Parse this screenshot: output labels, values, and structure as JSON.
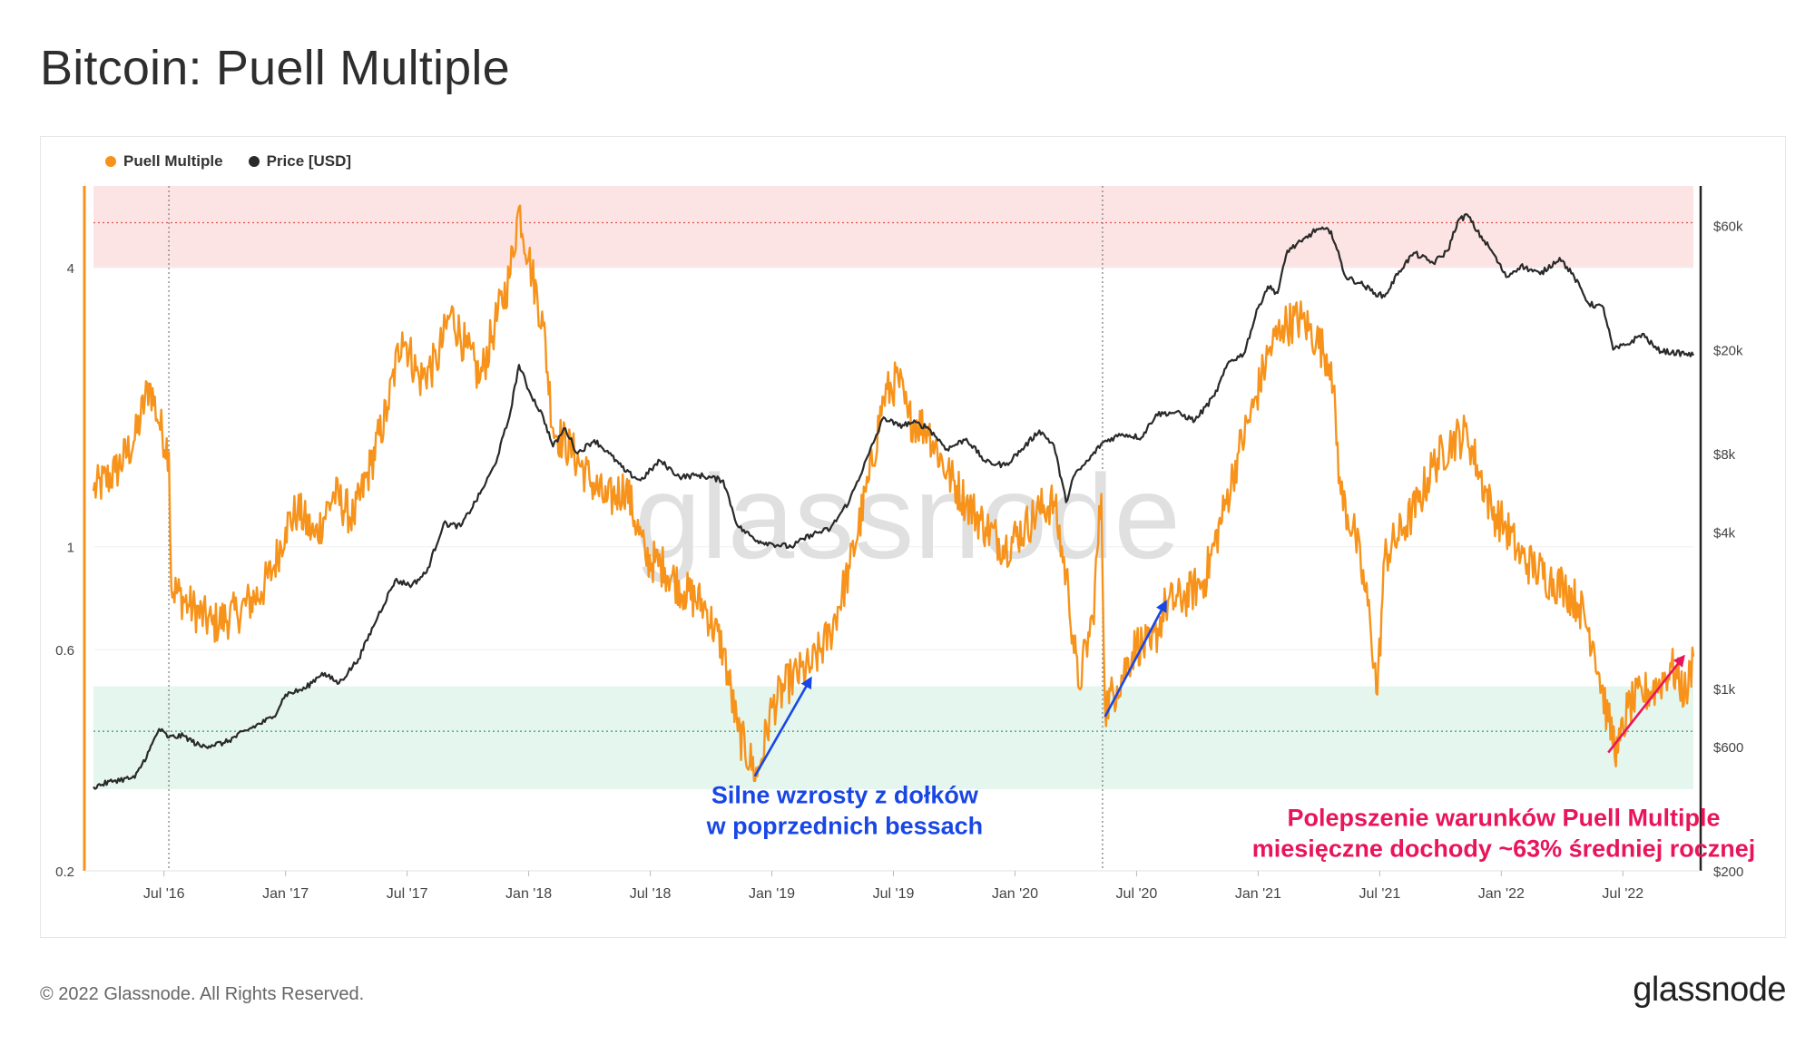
{
  "title": "Bitcoin: Puell Multiple",
  "footer": {
    "copyright": "© 2022 Glassnode. All Rights Reserved.",
    "brand": "glassnode",
    "watermark": "glassnode"
  },
  "colors": {
    "puell": "#f7931a",
    "price": "#2a2a2a",
    "top_band": "#fde4e4",
    "bottom_band": "#e4f6ee",
    "annotation_blue": "#1947e5",
    "annotation_red": "#e8155a"
  },
  "chart_data": {
    "type": "line",
    "legend": [
      {
        "name": "Puell Multiple",
        "color": "#f7931a"
      },
      {
        "name": "Price [USD]",
        "color": "#2a2a2a"
      }
    ],
    "x_range": [
      2016.21,
      2022.79
    ],
    "x_ticks": [
      {
        "label": "Jul '16",
        "t": 2016.5
      },
      {
        "label": "Jan '17",
        "t": 2017.0
      },
      {
        "label": "Jul '17",
        "t": 2017.5
      },
      {
        "label": "Jan '18",
        "t": 2018.0
      },
      {
        "label": "Jul '18",
        "t": 2018.5
      },
      {
        "label": "Jan '19",
        "t": 2019.0
      },
      {
        "label": "Jul '19",
        "t": 2019.5
      },
      {
        "label": "Jan '20",
        "t": 2020.0
      },
      {
        "label": "Jul '20",
        "t": 2020.5
      },
      {
        "label": "Jan '21",
        "t": 2021.0
      },
      {
        "label": "Jul '21",
        "t": 2021.5
      },
      {
        "label": "Jan '22",
        "t": 2022.0
      },
      {
        "label": "Jul '22",
        "t": 2022.5
      }
    ],
    "y_left": {
      "scale": "log",
      "range": [
        0.2,
        6.0
      ],
      "ticks": [
        {
          "label": "0.2",
          "v": 0.2
        },
        {
          "label": "0.6",
          "v": 0.6
        },
        {
          "label": "1",
          "v": 1
        },
        {
          "label": "4",
          "v": 4
        }
      ]
    },
    "y_right": {
      "scale": "log",
      "range": [
        200,
        85000
      ],
      "ticks": [
        {
          "label": "$200",
          "v": 200
        },
        {
          "label": "$600",
          "v": 600
        },
        {
          "label": "$1k",
          "v": 1000
        },
        {
          "label": "$4k",
          "v": 4000
        },
        {
          "label": "$8k",
          "v": 8000
        },
        {
          "label": "$20k",
          "v": 20000
        },
        {
          "label": "$60k",
          "v": 60000
        }
      ]
    },
    "bands": [
      {
        "name": "overheated",
        "from": 4.0,
        "to": 6.0,
        "ref_line": 5.0
      },
      {
        "name": "undervalued",
        "from": 0.3,
        "to": 0.5,
        "ref_line": 0.4
      }
    ],
    "halvings": [
      2016.52,
      2020.36
    ],
    "series": [
      {
        "name": "Puell Multiple",
        "axis": "left",
        "points": [
          [
            2016.21,
            1.32
          ],
          [
            2016.3,
            1.45
          ],
          [
            2016.38,
            1.7
          ],
          [
            2016.44,
            2.25
          ],
          [
            2016.48,
            1.85
          ],
          [
            2016.52,
            1.6
          ],
          [
            2016.53,
            0.82
          ],
          [
            2016.6,
            0.75
          ],
          [
            2016.7,
            0.68
          ],
          [
            2016.8,
            0.72
          ],
          [
            2016.9,
            0.8
          ],
          [
            2016.95,
            0.9
          ],
          [
            2017.0,
            1.1
          ],
          [
            2017.05,
            1.2
          ],
          [
            2017.12,
            1.05
          ],
          [
            2017.2,
            1.3
          ],
          [
            2017.28,
            1.15
          ],
          [
            2017.35,
            1.5
          ],
          [
            2017.42,
            2.0
          ],
          [
            2017.48,
            2.9
          ],
          [
            2017.55,
            2.3
          ],
          [
            2017.62,
            2.5
          ],
          [
            2017.68,
            3.2
          ],
          [
            2017.74,
            2.7
          ],
          [
            2017.8,
            2.3
          ],
          [
            2017.86,
            3.0
          ],
          [
            2017.92,
            3.8
          ],
          [
            2017.96,
            5.4
          ],
          [
            2018.0,
            4.2
          ],
          [
            2018.06,
            3.0
          ],
          [
            2018.1,
            1.8
          ],
          [
            2018.18,
            1.6
          ],
          [
            2018.25,
            1.4
          ],
          [
            2018.32,
            1.25
          ],
          [
            2018.4,
            1.35
          ],
          [
            2018.48,
            0.95
          ],
          [
            2018.56,
            0.9
          ],
          [
            2018.64,
            0.8
          ],
          [
            2018.72,
            0.75
          ],
          [
            2018.8,
            0.6
          ],
          [
            2018.86,
            0.4
          ],
          [
            2018.94,
            0.32
          ],
          [
            2019.0,
            0.45
          ],
          [
            2019.08,
            0.52
          ],
          [
            2019.16,
            0.55
          ],
          [
            2019.24,
            0.65
          ],
          [
            2019.32,
            0.9
          ],
          [
            2019.4,
            1.4
          ],
          [
            2019.46,
            2.1
          ],
          [
            2019.52,
            2.3
          ],
          [
            2019.56,
            1.9
          ],
          [
            2019.64,
            1.8
          ],
          [
            2019.72,
            1.45
          ],
          [
            2019.8,
            1.25
          ],
          [
            2019.88,
            1.1
          ],
          [
            2019.96,
            1.0
          ],
          [
            2020.04,
            1.1
          ],
          [
            2020.1,
            1.2
          ],
          [
            2020.16,
            1.25
          ],
          [
            2020.22,
            0.8
          ],
          [
            2020.26,
            0.5
          ],
          [
            2020.32,
            0.7
          ],
          [
            2020.355,
            1.3
          ],
          [
            2020.37,
            0.45
          ],
          [
            2020.42,
            0.5
          ],
          [
            2020.5,
            0.62
          ],
          [
            2020.56,
            0.6
          ],
          [
            2020.62,
            0.75
          ],
          [
            2020.7,
            0.78
          ],
          [
            2020.78,
            0.85
          ],
          [
            2020.86,
            1.2
          ],
          [
            2020.92,
            1.6
          ],
          [
            2020.98,
            2.0
          ],
          [
            2021.04,
            2.6
          ],
          [
            2021.1,
            3.0
          ],
          [
            2021.18,
            3.1
          ],
          [
            2021.24,
            2.8
          ],
          [
            2021.3,
            2.5
          ],
          [
            2021.34,
            1.3
          ],
          [
            2021.4,
            1.05
          ],
          [
            2021.46,
            0.7
          ],
          [
            2021.49,
            0.48
          ],
          [
            2021.52,
            0.95
          ],
          [
            2021.6,
            1.1
          ],
          [
            2021.66,
            1.25
          ],
          [
            2021.72,
            1.5
          ],
          [
            2021.8,
            1.7
          ],
          [
            2021.86,
            1.75
          ],
          [
            2021.9,
            1.5
          ],
          [
            2021.96,
            1.2
          ],
          [
            2022.02,
            1.1
          ],
          [
            2022.08,
            0.95
          ],
          [
            2022.14,
            0.9
          ],
          [
            2022.2,
            0.85
          ],
          [
            2022.26,
            0.82
          ],
          [
            2022.32,
            0.75
          ],
          [
            2022.38,
            0.62
          ],
          [
            2022.44,
            0.42
          ],
          [
            2022.48,
            0.36
          ],
          [
            2022.52,
            0.45
          ],
          [
            2022.58,
            0.48
          ],
          [
            2022.64,
            0.5
          ],
          [
            2022.7,
            0.55
          ],
          [
            2022.76,
            0.48
          ],
          [
            2022.79,
            0.58
          ]
        ]
      },
      {
        "name": "Price [USD]",
        "axis": "right",
        "points": [
          [
            2016.21,
            420
          ],
          [
            2016.3,
            445
          ],
          [
            2016.38,
            455
          ],
          [
            2016.44,
            580
          ],
          [
            2016.48,
            700
          ],
          [
            2016.52,
            650
          ],
          [
            2016.58,
            660
          ],
          [
            2016.65,
            600
          ],
          [
            2016.75,
            620
          ],
          [
            2016.85,
            700
          ],
          [
            2016.95,
            780
          ],
          [
            2017.0,
            950
          ],
          [
            2017.08,
            1000
          ],
          [
            2017.15,
            1150
          ],
          [
            2017.22,
            1050
          ],
          [
            2017.3,
            1300
          ],
          [
            2017.38,
            1900
          ],
          [
            2017.45,
            2600
          ],
          [
            2017.52,
            2500
          ],
          [
            2017.58,
            2800
          ],
          [
            2017.65,
            4300
          ],
          [
            2017.72,
            4200
          ],
          [
            2017.8,
            5600
          ],
          [
            2017.86,
            7200
          ],
          [
            2017.92,
            11000
          ],
          [
            2017.96,
            17500
          ],
          [
            2018.0,
            14000
          ],
          [
            2018.06,
            11000
          ],
          [
            2018.1,
            8500
          ],
          [
            2018.15,
            10000
          ],
          [
            2018.2,
            8000
          ],
          [
            2018.27,
            9000
          ],
          [
            2018.33,
            8000
          ],
          [
            2018.4,
            6800
          ],
          [
            2018.46,
            6300
          ],
          [
            2018.54,
            7500
          ],
          [
            2018.62,
            6500
          ],
          [
            2018.7,
            6600
          ],
          [
            2018.8,
            6300
          ],
          [
            2018.86,
            4200
          ],
          [
            2018.94,
            3700
          ],
          [
            2019.0,
            3600
          ],
          [
            2019.08,
            3500
          ],
          [
            2019.16,
            3900
          ],
          [
            2019.24,
            4100
          ],
          [
            2019.32,
            5300
          ],
          [
            2019.4,
            8000
          ],
          [
            2019.46,
            11000
          ],
          [
            2019.52,
            10200
          ],
          [
            2019.58,
            10500
          ],
          [
            2019.64,
            10100
          ],
          [
            2019.72,
            8300
          ],
          [
            2019.8,
            9100
          ],
          [
            2019.88,
            7400
          ],
          [
            2019.96,
            7200
          ],
          [
            2020.04,
            8500
          ],
          [
            2020.1,
            9800
          ],
          [
            2020.16,
            8600
          ],
          [
            2020.21,
            5200
          ],
          [
            2020.24,
            6500
          ],
          [
            2020.3,
            7500
          ],
          [
            2020.36,
            8800
          ],
          [
            2020.44,
            9500
          ],
          [
            2020.52,
            9200
          ],
          [
            2020.58,
            11300
          ],
          [
            2020.66,
            11500
          ],
          [
            2020.74,
            10700
          ],
          [
            2020.82,
            13300
          ],
          [
            2020.88,
            18000
          ],
          [
            2020.94,
            19200
          ],
          [
            2021.0,
            29000
          ],
          [
            2021.04,
            35000
          ],
          [
            2021.08,
            33000
          ],
          [
            2021.12,
            48000
          ],
          [
            2021.18,
            52000
          ],
          [
            2021.24,
            58000
          ],
          [
            2021.3,
            57000
          ],
          [
            2021.36,
            38000
          ],
          [
            2021.42,
            36000
          ],
          [
            2021.48,
            33000
          ],
          [
            2021.52,
            32000
          ],
          [
            2021.58,
            40000
          ],
          [
            2021.64,
            47000
          ],
          [
            2021.72,
            43000
          ],
          [
            2021.78,
            48000
          ],
          [
            2021.82,
            62000
          ],
          [
            2021.86,
            66000
          ],
          [
            2021.9,
            57000
          ],
          [
            2021.96,
            48000
          ],
          [
            2022.02,
            38000
          ],
          [
            2022.08,
            42000
          ],
          [
            2022.16,
            39000
          ],
          [
            2022.24,
            45000
          ],
          [
            2022.3,
            38000
          ],
          [
            2022.36,
            30000
          ],
          [
            2022.42,
            29000
          ],
          [
            2022.46,
            20000
          ],
          [
            2022.52,
            21000
          ],
          [
            2022.58,
            23000
          ],
          [
            2022.64,
            20000
          ],
          [
            2022.7,
            19500
          ],
          [
            2022.76,
            19300
          ],
          [
            2022.79,
            19000
          ]
        ]
      }
    ],
    "annotations": [
      {
        "text_lines": [
          "Silne wzrosty z dołków",
          "w poprzednich bessach"
        ],
        "color": "#1947e5",
        "anchor": [
          2019.3,
          0.28
        ],
        "align": "middle",
        "arrows": [
          {
            "from": [
              2018.93,
              0.32
            ],
            "to": [
              2019.16,
              0.52
            ]
          },
          {
            "from": [
              2020.37,
              0.43
            ],
            "to": [
              2020.62,
              0.76
            ]
          }
        ]
      },
      {
        "text_lines": [
          "Polepszenie warunków Puell Multiple",
          "miesięczne dochody ~63% średniej rocznej"
        ],
        "color": "#e8155a",
        "anchor": [
          2022.01,
          0.25
        ],
        "align": "middle",
        "arrows": [
          {
            "from": [
              2022.44,
              0.36
            ],
            "to": [
              2022.75,
              0.58
            ]
          }
        ]
      }
    ]
  }
}
